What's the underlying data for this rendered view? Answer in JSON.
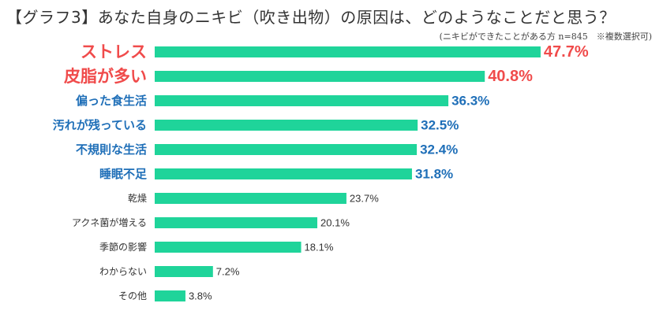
{
  "chart": {
    "title": "【グラフ3】あなた自身のニキビ（吹き出物）の原因は、どのようなことだと思う？",
    "subtitle": "(ニキビができたことがある方 n=845　※複数選択可)"
  },
  "chart_data": {
    "type": "bar",
    "orientation": "horizontal",
    "categories": [
      "ストレス",
      "皮脂が多い",
      "偏った食生活",
      "汚れが残っている",
      "不規則な生活",
      "睡眠不足",
      "乾燥",
      "アクネ菌が増える",
      "季節の影響",
      "わからない",
      "その他"
    ],
    "values": [
      47.7,
      40.8,
      36.3,
      32.5,
      32.4,
      31.8,
      23.7,
      20.1,
      18.1,
      7.2,
      3.8
    ],
    "value_labels": [
      "47.7%",
      "40.8%",
      "36.3%",
      "32.5%",
      "32.4%",
      "31.8%",
      "23.7%",
      "20.1%",
      "18.1%",
      "7.2%",
      "3.8%"
    ],
    "label_emphasis": [
      "red",
      "red",
      "blue",
      "blue",
      "blue",
      "blue",
      "normal",
      "normal",
      "normal",
      "normal",
      "normal"
    ],
    "colors": {
      "bar": "#1fd49a",
      "red": "#f04b4b",
      "blue": "#1f6fb8",
      "normal": "#333333"
    },
    "grid": false,
    "legend": "none"
  }
}
